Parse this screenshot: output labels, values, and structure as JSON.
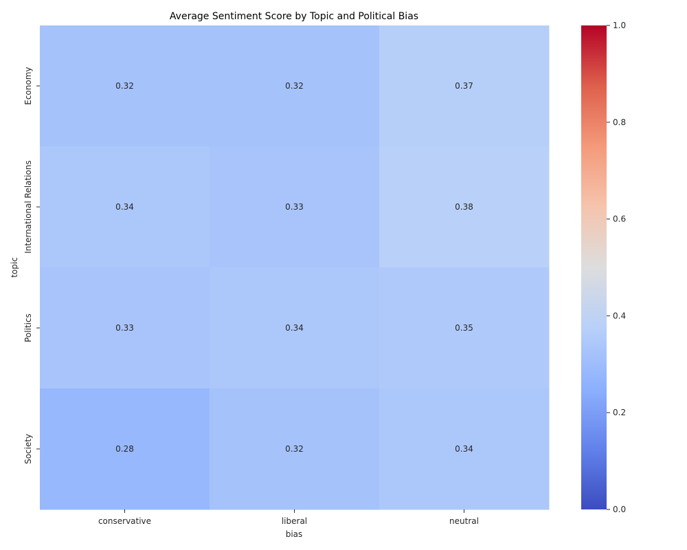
{
  "chart_data": {
    "type": "heatmap",
    "title": "Average Sentiment Score by Topic and Political Bias",
    "xlabel": "bias",
    "ylabel": "topic",
    "x_categories": [
      "conservative",
      "liberal",
      "neutral"
    ],
    "y_categories": [
      "Economy",
      "International Relations",
      "Politics",
      "Society"
    ],
    "values": [
      [
        0.32,
        0.32,
        0.37
      ],
      [
        0.34,
        0.33,
        0.38
      ],
      [
        0.33,
        0.34,
        0.35
      ],
      [
        0.28,
        0.32,
        0.34
      ]
    ],
    "value_labels": [
      [
        "0.32",
        "0.32",
        "0.37"
      ],
      [
        "0.34",
        "0.33",
        "0.38"
      ],
      [
        "0.33",
        "0.34",
        "0.35"
      ],
      [
        "0.28",
        "0.32",
        "0.34"
      ]
    ],
    "colorbar": {
      "colormap": "coolwarm",
      "range": [
        0,
        1
      ],
      "ticks": [
        "0.0",
        "0.2",
        "0.4",
        "0.6",
        "0.8",
        "1.0"
      ]
    },
    "annotated": true,
    "grid": false
  }
}
